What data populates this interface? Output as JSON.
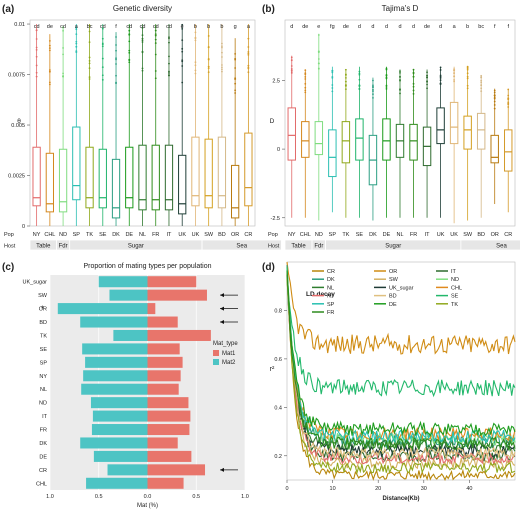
{
  "chart_data": [
    {
      "panel": "(a)",
      "type": "box",
      "title": "Genetic diversity",
      "ylabel": "θ",
      "ylim": [
        0,
        0.0102
      ],
      "yticks": [
        "0",
        "0.0025",
        "0.005",
        "0.0075",
        "0.01"
      ],
      "ytick_values": [
        0,
        0.0025,
        0.005,
        0.0075,
        0.01
      ],
      "row_labels": [
        "Pop",
        "Host"
      ],
      "host_groups": [
        {
          "label": "Table",
          "span": 2
        },
        {
          "label": "Fdr",
          "span": 1
        },
        {
          "label": "Sugar",
          "span": 10
        },
        {
          "label": "Sea",
          "span": 6
        }
      ],
      "categories": [
        "NY",
        "CHL",
        "ND",
        "SP",
        "TK",
        "SE",
        "DK",
        "DE",
        "NL",
        "FR",
        "IT",
        "UK",
        "UK",
        "SW",
        "BD",
        "OR",
        "CR"
      ],
      "letters": [
        "cd",
        "de",
        "cd",
        "a",
        "bc",
        "cd",
        "f",
        "cd",
        "cd",
        "cd",
        "cd",
        "e",
        "b",
        "b",
        "b",
        "g",
        "a"
      ],
      "colors": [
        "#e26a6a",
        "#d4881e",
        "#7fdc7f",
        "#2bbfb2",
        "#8fa81a",
        "#1fb46a",
        "#2b9e82",
        "#1a9a1a",
        "#2e7a2e",
        "#2e8c1a",
        "#2e6a2e",
        "#1e3e36",
        "#e0b676",
        "#d4a020",
        "#d4b888",
        "#b87a10",
        "#d49a2a"
      ],
      "boxes": [
        {
          "min": 0,
          "q1": 0.001,
          "median": 0.0014,
          "q3": 0.0039,
          "max": 0.01
        },
        {
          "min": 0,
          "q1": 0.0007,
          "median": 0.0011,
          "q3": 0.0036,
          "max": 0.0095
        },
        {
          "min": 0,
          "q1": 0.0007,
          "median": 0.0012,
          "q3": 0.0038,
          "max": 0.0099
        },
        {
          "min": 0,
          "q1": 0.0013,
          "median": 0.002,
          "q3": 0.0049,
          "max": 0.01
        },
        {
          "min": 0,
          "q1": 0.0009,
          "median": 0.0014,
          "q3": 0.0039,
          "max": 0.01
        },
        {
          "min": 0,
          "q1": 0.0009,
          "median": 0.0014,
          "q3": 0.0038,
          "max": 0.01
        },
        {
          "min": 0,
          "q1": 0.0004,
          "median": 0.0009,
          "q3": 0.0033,
          "max": 0.0096
        },
        {
          "min": 0,
          "q1": 0.0009,
          "median": 0.0014,
          "q3": 0.0039,
          "max": 0.01
        },
        {
          "min": 0,
          "q1": 0.0008,
          "median": 0.0013,
          "q3": 0.004,
          "max": 0.01
        },
        {
          "min": 0,
          "q1": 0.0008,
          "median": 0.0013,
          "q3": 0.004,
          "max": 0.01
        },
        {
          "min": 0,
          "q1": 0.0008,
          "median": 0.0013,
          "q3": 0.004,
          "max": 0.01
        },
        {
          "min": 0,
          "q1": 0.0006,
          "median": 0.0011,
          "q3": 0.0035,
          "max": 0.01
        },
        {
          "min": 0,
          "q1": 0.001,
          "median": 0.0015,
          "q3": 0.0044,
          "max": 0.01
        },
        {
          "min": 0,
          "q1": 0.0009,
          "median": 0.0015,
          "q3": 0.0043,
          "max": 0.01
        },
        {
          "min": 0,
          "q1": 0.0009,
          "median": 0.0015,
          "q3": 0.0044,
          "max": 0.01
        },
        {
          "min": 0,
          "q1": 0.0004,
          "median": 0.0009,
          "q3": 0.003,
          "max": 0.0093
        },
        {
          "min": 0,
          "q1": 0.001,
          "median": 0.0019,
          "q3": 0.0046,
          "max": 0.01
        }
      ]
    },
    {
      "panel": "(b)",
      "type": "box",
      "title": "Tajima's D",
      "ylabel": "D",
      "ylim": [
        -2.8,
        4.7
      ],
      "yticks": [
        "-2.5",
        "0",
        "2.5"
      ],
      "ytick_values": [
        -2.5,
        0,
        2.5
      ],
      "row_labels": [
        "Pop",
        "Host"
      ],
      "host_groups": [
        {
          "label": "Table",
          "span": 2
        },
        {
          "label": "Fdr",
          "span": 1
        },
        {
          "label": "Sugar",
          "span": 10
        },
        {
          "label": "Sea",
          "span": 6
        }
      ],
      "categories": [
        "NY",
        "CHL",
        "ND",
        "SP",
        "TK",
        "SE",
        "DK",
        "DE",
        "NL",
        "FR",
        "IT",
        "UK",
        "UK",
        "SW",
        "BD",
        "OR",
        "CR"
      ],
      "letters": [
        "d",
        "de",
        "e",
        "fg",
        "de",
        "d",
        "d",
        "d",
        "d",
        "d",
        "de",
        "d",
        "a",
        "b",
        "bc",
        "f",
        "f"
      ],
      "colors": [
        "#e26a6a",
        "#d4881e",
        "#7fdc7f",
        "#2bbfb2",
        "#8fa81a",
        "#1fb46a",
        "#2b9e82",
        "#1a9a1a",
        "#2e7a2e",
        "#2e8c1a",
        "#2e6a2e",
        "#1e3e36",
        "#e0b676",
        "#d4a020",
        "#d4b888",
        "#b87a10",
        "#d49a2a"
      ],
      "boxes": [
        {
          "min": -2.5,
          "q1": -0.4,
          "median": 0.5,
          "q3": 1.5,
          "max": 3.4
        },
        {
          "min": -2.5,
          "q1": -0.3,
          "median": 0.3,
          "q3": 1.0,
          "max": 2.9
        },
        {
          "min": -2.6,
          "q1": -0.2,
          "median": 0.2,
          "q3": 1.0,
          "max": 4.2
        },
        {
          "min": -2.3,
          "q1": -1.0,
          "median": -0.3,
          "q3": 0.7,
          "max": 3.0
        },
        {
          "min": -2.5,
          "q1": -0.5,
          "median": 0.3,
          "q3": 1.0,
          "max": 2.9
        },
        {
          "min": -2.5,
          "q1": -0.4,
          "median": 0.4,
          "q3": 1.1,
          "max": 3.0
        },
        {
          "min": -2.6,
          "q1": -1.3,
          "median": -0.4,
          "q3": 0.5,
          "max": 2.6
        },
        {
          "min": -2.5,
          "q1": -0.4,
          "median": 0.3,
          "q3": 1.1,
          "max": 3.0
        },
        {
          "min": -2.5,
          "q1": -0.3,
          "median": 0.3,
          "q3": 0.9,
          "max": 2.9
        },
        {
          "min": -2.5,
          "q1": -0.4,
          "median": 0.3,
          "q3": 0.9,
          "max": 2.9
        },
        {
          "min": -2.5,
          "q1": -0.6,
          "median": 0.1,
          "q3": 0.8,
          "max": 2.9
        },
        {
          "min": -2.5,
          "q1": 0.2,
          "median": 0.7,
          "q3": 1.5,
          "max": 3.0
        },
        {
          "min": -2.7,
          "q1": 0.2,
          "median": 0.8,
          "q3": 1.7,
          "max": 3.0
        },
        {
          "min": -2.6,
          "q1": 0.0,
          "median": 0.7,
          "q3": 1.2,
          "max": 3.0
        },
        {
          "min": -2.5,
          "q1": 0.0,
          "median": 0.7,
          "q3": 1.3,
          "max": 2.7
        },
        {
          "min": -2.0,
          "q1": -0.5,
          "median": -0.3,
          "q3": 0.5,
          "max": 2.2
        },
        {
          "min": -2.3,
          "q1": -0.8,
          "median": -0.1,
          "q3": 0.7,
          "max": 2.2
        }
      ]
    },
    {
      "panel": "(c)",
      "type": "bar",
      "orientation": "horizontal",
      "title": "Proportion of mating types per population",
      "xlabel": "Mat (%)",
      "xticks": [
        "1.0",
        "0.5",
        "0.0",
        "0.5",
        "1.0"
      ],
      "categories": [
        "UK_sugar",
        "SW",
        "OR",
        "BD",
        "TK",
        "SE",
        "SP",
        "NY",
        "NL",
        "ND",
        "IT",
        "FR",
        "DK",
        "DE",
        "CR",
        "CHL"
      ],
      "legend_title": "Mat_type",
      "series": [
        {
          "name": "Mat1",
          "color": "#e8756b",
          "values": [
            0.5,
            0.61,
            0.08,
            0.31,
            0.65,
            0.33,
            0.36,
            0.34,
            0.32,
            0.42,
            0.44,
            0.43,
            0.31,
            0.45,
            0.59,
            0.37
          ]
        },
        {
          "name": "Mat2",
          "color": "#4dc4c4",
          "values": [
            0.5,
            0.39,
            0.92,
            0.69,
            0.35,
            0.67,
            0.64,
            0.66,
            0.68,
            0.58,
            0.56,
            0.57,
            0.69,
            0.55,
            0.41,
            0.63
          ]
        }
      ],
      "arrows": [
        "SW",
        "OR",
        "BD",
        "CR"
      ],
      "star": "OR",
      "star_label": "*"
    },
    {
      "panel": "(d)",
      "type": "line",
      "title": "LD decay",
      "xlabel": "Distance(Kb)",
      "ylabel": "r²",
      "xlim": [
        0,
        50
      ],
      "ylim": [
        0.1,
        1.0
      ],
      "xticks": [
        "0",
        "10",
        "20",
        "30",
        "40"
      ],
      "yticks": [
        "0.2",
        "0.4",
        "0.6",
        "0.8"
      ],
      "legend": [
        "CR",
        "OR",
        "IT",
        "DK",
        "SW",
        "ND",
        "NL",
        "UK_sugar",
        "CHL",
        "NY",
        "BD",
        "SE",
        "SP",
        "DE",
        "TK",
        "FR"
      ],
      "series": [
        {
          "name": "CR",
          "color": "#b8860b",
          "plateau": 0.12,
          "start": 0.95
        },
        {
          "name": "OR",
          "color": "#d08c14",
          "plateau": 0.66,
          "start": 0.98
        },
        {
          "name": "IT",
          "color": "#2e6b2e",
          "plateau": 0.2,
          "start": 0.95
        },
        {
          "name": "DK",
          "color": "#2a9d7f",
          "plateau": 0.26,
          "start": 0.97
        },
        {
          "name": "SW",
          "color": "#d4b060",
          "plateau": 0.17,
          "start": 0.95
        },
        {
          "name": "ND",
          "color": "#80e080",
          "plateau": 0.27,
          "start": 0.96
        },
        {
          "name": "NL",
          "color": "#2e7d2e",
          "plateau": 0.24,
          "start": 0.95
        },
        {
          "name": "UK_sugar",
          "color": "#1f3b36",
          "plateau": 0.22,
          "start": 0.95
        },
        {
          "name": "CHL",
          "color": "#e08a1e",
          "plateau": 0.29,
          "start": 0.96
        },
        {
          "name": "NY",
          "color": "#e26a6a",
          "plateau": 0.19,
          "start": 0.95
        },
        {
          "name": "BD",
          "color": "#e0c080",
          "plateau": 0.21,
          "start": 0.95
        },
        {
          "name": "SE",
          "color": "#22b86b",
          "plateau": 0.48,
          "start": 0.97
        },
        {
          "name": "SP",
          "color": "#27c0b0",
          "plateau": 0.28,
          "start": 0.96
        },
        {
          "name": "DE",
          "color": "#1f9d1f",
          "plateau": 0.31,
          "start": 0.96
        },
        {
          "name": "TK",
          "color": "#90a81c",
          "plateau": 0.15,
          "start": 0.95
        },
        {
          "name": "FR",
          "color": "#2e8b1e",
          "plateau": 0.25,
          "start": 0.95
        }
      ]
    }
  ]
}
